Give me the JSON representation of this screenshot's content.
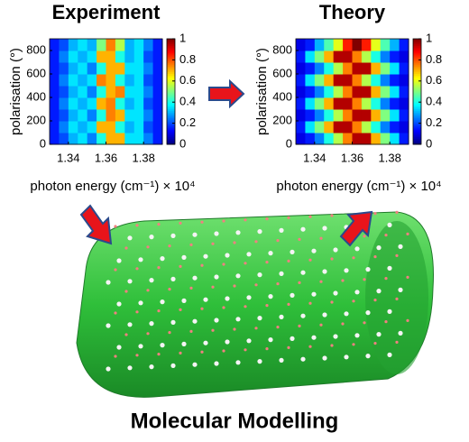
{
  "chart_data": [
    {
      "type": "heatmap",
      "title": "Experiment",
      "colormap": "jet",
      "xlabel": "photon energy (cm⁻¹) × 10⁴",
      "ylabel": "polarisation (°)",
      "x": [
        1.3325,
        1.3375,
        1.3425,
        1.3475,
        1.3525,
        1.3575,
        1.3625,
        1.3675,
        1.3725,
        1.3775,
        1.3825,
        1.3875
      ],
      "y": [
        50,
        150,
        250,
        350,
        450,
        550,
        650,
        750,
        850
      ],
      "z": [
        [
          0.15,
          0.2,
          0.3,
          0.35,
          0.25,
          0.4,
          0.7,
          0.7,
          0.35,
          0.35,
          0.25,
          0.15
        ],
        [
          0.15,
          0.25,
          0.35,
          0.3,
          0.35,
          0.7,
          0.7,
          0.4,
          0.3,
          0.35,
          0.2,
          0.15
        ],
        [
          0.15,
          0.2,
          0.3,
          0.35,
          0.25,
          0.4,
          0.75,
          0.7,
          0.35,
          0.35,
          0.25,
          0.15
        ],
        [
          0.15,
          0.25,
          0.35,
          0.3,
          0.35,
          0.7,
          0.75,
          0.4,
          0.3,
          0.35,
          0.2,
          0.15
        ],
        [
          0.15,
          0.2,
          0.3,
          0.35,
          0.25,
          0.4,
          0.7,
          0.75,
          0.35,
          0.35,
          0.25,
          0.15
        ],
        [
          0.15,
          0.25,
          0.35,
          0.3,
          0.35,
          0.75,
          0.7,
          0.4,
          0.3,
          0.35,
          0.2,
          0.15
        ],
        [
          0.15,
          0.2,
          0.3,
          0.35,
          0.25,
          0.4,
          0.7,
          0.7,
          0.35,
          0.35,
          0.25,
          0.15
        ],
        [
          0.15,
          0.25,
          0.35,
          0.3,
          0.35,
          0.7,
          0.7,
          0.4,
          0.3,
          0.35,
          0.2,
          0.15
        ],
        [
          0.15,
          0.2,
          0.3,
          0.35,
          0.3,
          0.5,
          0.75,
          0.55,
          0.3,
          0.35,
          0.25,
          0.15
        ]
      ],
      "xlim": [
        1.33,
        1.39
      ],
      "ylim": [
        0,
        900
      ],
      "xticks": [
        1.34,
        1.36,
        1.38
      ],
      "yticks": [
        0,
        200,
        400,
        600,
        800
      ],
      "clim": [
        0,
        1
      ],
      "cticks": [
        0,
        0.2,
        0.4,
        0.6,
        0.8,
        1
      ]
    },
    {
      "type": "heatmap",
      "title": "Theory",
      "colormap": "jet",
      "xlabel": "photon energy (cm⁻¹) × 10⁴",
      "ylabel": "polarisation (°)",
      "x": [
        1.3325,
        1.3375,
        1.3425,
        1.3475,
        1.3525,
        1.3575,
        1.3625,
        1.3675,
        1.3725,
        1.3775,
        1.3825,
        1.3875
      ],
      "y": [
        50,
        150,
        250,
        350,
        450,
        550,
        650,
        750,
        850
      ],
      "z": [
        [
          0.1,
          0.15,
          0.25,
          0.4,
          0.55,
          0.75,
          0.95,
          0.95,
          0.7,
          0.5,
          0.35,
          0.15
        ],
        [
          0.15,
          0.35,
          0.5,
          0.7,
          0.95,
          0.95,
          0.75,
          0.55,
          0.4,
          0.25,
          0.15,
          0.1
        ],
        [
          0.1,
          0.15,
          0.25,
          0.4,
          0.55,
          0.75,
          0.95,
          0.95,
          0.7,
          0.5,
          0.35,
          0.15
        ],
        [
          0.15,
          0.35,
          0.5,
          0.7,
          0.95,
          0.95,
          0.75,
          0.55,
          0.4,
          0.25,
          0.15,
          0.1
        ],
        [
          0.1,
          0.15,
          0.25,
          0.4,
          0.55,
          0.75,
          0.95,
          0.95,
          0.7,
          0.5,
          0.35,
          0.15
        ],
        [
          0.15,
          0.35,
          0.5,
          0.7,
          0.95,
          0.95,
          0.75,
          0.55,
          0.4,
          0.25,
          0.15,
          0.1
        ],
        [
          0.1,
          0.15,
          0.25,
          0.4,
          0.55,
          0.75,
          0.95,
          0.95,
          0.7,
          0.5,
          0.35,
          0.15
        ],
        [
          0.15,
          0.35,
          0.5,
          0.7,
          0.95,
          0.95,
          0.75,
          0.55,
          0.4,
          0.25,
          0.15,
          0.1
        ],
        [
          0.1,
          0.15,
          0.3,
          0.45,
          0.6,
          0.85,
          1,
          0.85,
          0.6,
          0.45,
          0.3,
          0.15
        ]
      ],
      "xlim": [
        1.33,
        1.39
      ],
      "ylim": [
        0,
        900
      ],
      "xticks": [
        1.34,
        1.36,
        1.38
      ],
      "yticks": [
        0,
        200,
        400,
        600,
        800
      ],
      "clim": [
        0,
        1
      ],
      "cticks": [
        0,
        0.2,
        0.4,
        0.6,
        0.8,
        1
      ]
    }
  ],
  "caption": "Molecular Modelling"
}
